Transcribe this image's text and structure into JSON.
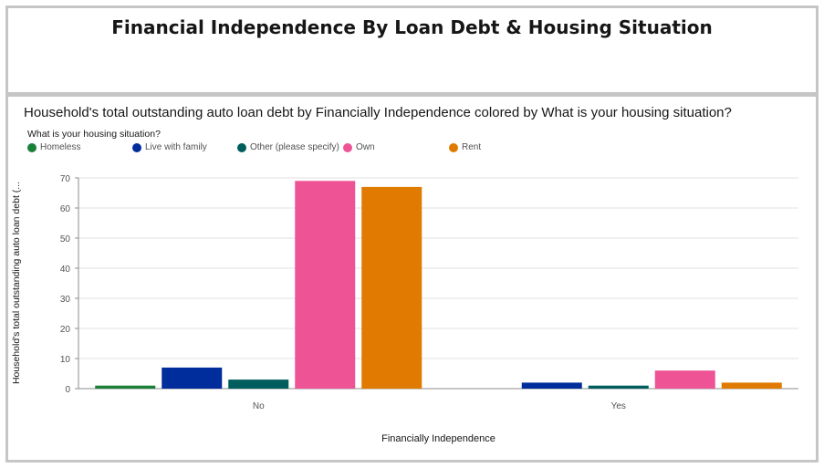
{
  "dashboard": {
    "title": "Financial Independence By Loan Debt & Housing Situation"
  },
  "chart_data": {
    "type": "bar",
    "title": "Household's total outstanding auto loan debt by Financially Independence colored by What is your housing situation?",
    "xlabel": "Financially Independence",
    "ylabel": "Household's total outstanding auto loan debt (...",
    "legend_title": "What is your housing situation?",
    "legend_placement": "top-left",
    "categories": [
      "No",
      "Yes"
    ],
    "ylim": [
      0,
      70
    ],
    "yticks": [
      0,
      10,
      20,
      30,
      40,
      50,
      60,
      70
    ],
    "grid": true,
    "series": [
      {
        "name": "Homeless",
        "color": "#198038",
        "values": [
          1,
          0
        ]
      },
      {
        "name": "Live with family",
        "color": "#002d9c",
        "values": [
          7,
          2
        ]
      },
      {
        "name": "Other (please specify)",
        "color": "#005d5d",
        "values": [
          3,
          1
        ]
      },
      {
        "name": "Own",
        "color": "#ee5396",
        "values": [
          69,
          6
        ]
      },
      {
        "name": "Rent",
        "color": "#e07a00",
        "values": [
          67,
          2
        ]
      }
    ]
  }
}
